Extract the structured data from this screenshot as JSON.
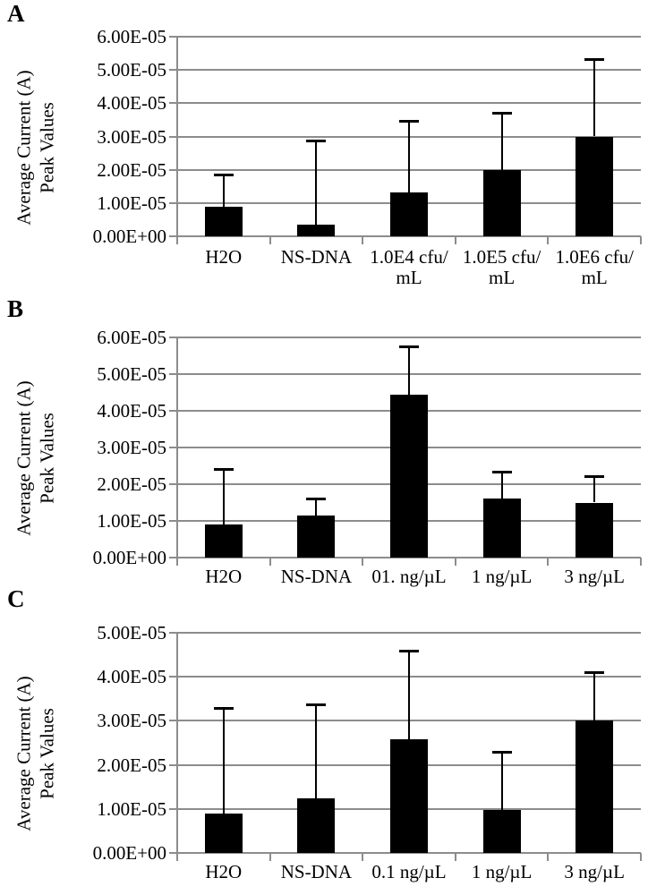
{
  "chart_data": [
    {
      "type": "bar",
      "panel_label": "A",
      "ylabel_lines": [
        "Average Current (A)",
        "Peak Values"
      ],
      "categories": [
        "H2O",
        "NS-DNA",
        "1.0E4 cfu/\nmL",
        "1.0E5 cfu/\nmL",
        "1.0E6 cfu/\nmL"
      ],
      "values": [
        9e-06,
        3.6e-06,
        1.33e-05,
        2e-05,
        3e-05
      ],
      "error_up": [
        9.5e-06,
        2.52e-05,
        2.15e-05,
        1.72e-05,
        2.33e-05
      ],
      "ylim": [
        0,
        6e-05
      ],
      "ytick_labels": [
        "0.00E+00",
        "1.00E-05",
        "2.00E-05",
        "3.00E-05",
        "4.00E-05",
        "5.00E-05",
        "6.00E-05"
      ],
      "grid": true,
      "legend": "none",
      "bar_color": "#000000",
      "gridline_color": "#8c8c8c"
    },
    {
      "type": "bar",
      "panel_label": "B",
      "ylabel_lines": [
        "Average Current (A)",
        "Peak Values"
      ],
      "categories": [
        "H2O",
        "NS-DNA",
        "01. ng/µL",
        "1 ng/µL",
        "3 ng/µL"
      ],
      "values": [
        9e-06,
        1.15e-05,
        4.45e-05,
        1.6e-05,
        1.5e-05
      ],
      "error_up": [
        1.52e-05,
        4.5e-06,
        1.3e-05,
        7.3e-06,
        7.2e-06
      ],
      "ylim": [
        0,
        6e-05
      ],
      "ytick_labels": [
        "0.00E+00",
        "1.00E-05",
        "2.00E-05",
        "3.00E-05",
        "4.00E-05",
        "5.00E-05",
        "6.00E-05"
      ],
      "grid": true,
      "legend": "none",
      "bar_color": "#000000",
      "gridline_color": "#8c8c8c"
    },
    {
      "type": "bar",
      "panel_label": "C",
      "ylabel_lines": [
        "Average Current (A)",
        "Peak Values"
      ],
      "categories": [
        "H2O",
        "NS-DNA",
        "0.1 ng/µL",
        "1 ng/µL",
        "3 ng/µL"
      ],
      "values": [
        9e-06,
        1.24e-05,
        2.58e-05,
        9.7e-06,
        3e-05
      ],
      "error_up": [
        2.4e-05,
        2.13e-05,
        2.02e-05,
        1.33e-05,
        1.1e-05
      ],
      "ylim": [
        0,
        5e-05
      ],
      "ytick_labels": [
        "0.00E+00",
        "1.00E-05",
        "2.00E-05",
        "3.00E-05",
        "4.00E-05",
        "5.00E-05"
      ],
      "grid": true,
      "legend": "none",
      "bar_color": "#000000",
      "gridline_color": "#8c8c8c"
    }
  ]
}
